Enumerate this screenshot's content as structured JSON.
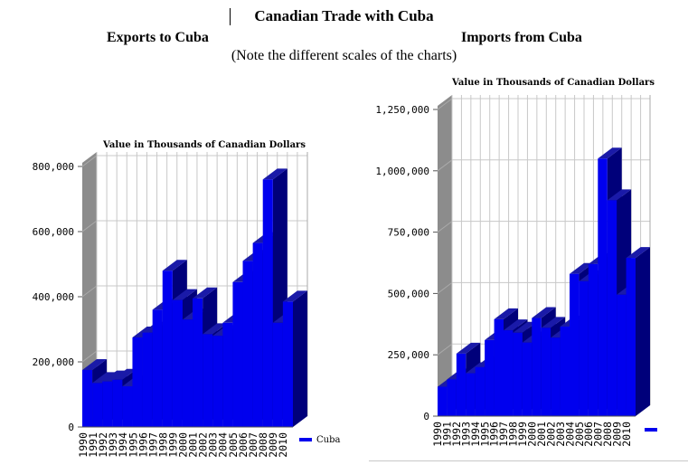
{
  "page": {
    "title": "Canadian Trade with Cuba",
    "left_heading": "Exports to Cuba",
    "right_heading": "Imports from Cuba",
    "note": "(Note the different scales of the charts)"
  },
  "colors": {
    "bar_front": "#0000ee",
    "bar_top": "#1a1aa8",
    "bar_side": "#00007a",
    "wall": "#ffffff",
    "left_wall": "#8c8c8c",
    "floor": "#c8c8c8",
    "grid": "#c8c8c8"
  },
  "chart_data": [
    {
      "type": "bar",
      "title": "Value in Thousands of Canadian Dollars",
      "categories": [
        "1990",
        "1991",
        "1992",
        "1993",
        "1994",
        "1995",
        "1996",
        "1997",
        "1998",
        "1999",
        "2000",
        "2001",
        "2002",
        "2003",
        "2004",
        "2005",
        "2006",
        "2007",
        "2008",
        "2009",
        "2010"
      ],
      "series": [
        {
          "name": "Cuba",
          "values": [
            175000,
            135000,
            140000,
            145000,
            125000,
            275000,
            290000,
            360000,
            480000,
            390000,
            330000,
            395000,
            285000,
            280000,
            320000,
            445000,
            510000,
            565000,
            760000,
            320000,
            385000
          ]
        }
      ],
      "y_ticks": [
        "0",
        "200,000",
        "400,000",
        "600,000",
        "800,000"
      ],
      "ylim": [
        0,
        800000
      ],
      "grid": true,
      "legend": "bottom-right"
    },
    {
      "type": "bar",
      "title": "Value in Thousands of Canadian Dollars",
      "categories": [
        "1990",
        "1991",
        "1992",
        "1993",
        "1994",
        "1995",
        "1996",
        "1997",
        "1998",
        "1999",
        "2000",
        "2001",
        "2002",
        "2003",
        "2004",
        "2005",
        "2006",
        "2007",
        "2008",
        "2009",
        "2010"
      ],
      "series": [
        {
          "values": [
            120000,
            150000,
            255000,
            175000,
            200000,
            310000,
            395000,
            350000,
            340000,
            300000,
            400000,
            360000,
            320000,
            365000,
            580000,
            550000,
            620000,
            1050000,
            880000,
            495000,
            645000
          ]
        }
      ],
      "y_ticks": [
        "0",
        "250,000",
        "500,000",
        "750,000",
        "1,000,000",
        "1,250,000"
      ],
      "ylim": [
        0,
        1250000
      ],
      "grid": true,
      "legend": "bottom-right"
    }
  ]
}
